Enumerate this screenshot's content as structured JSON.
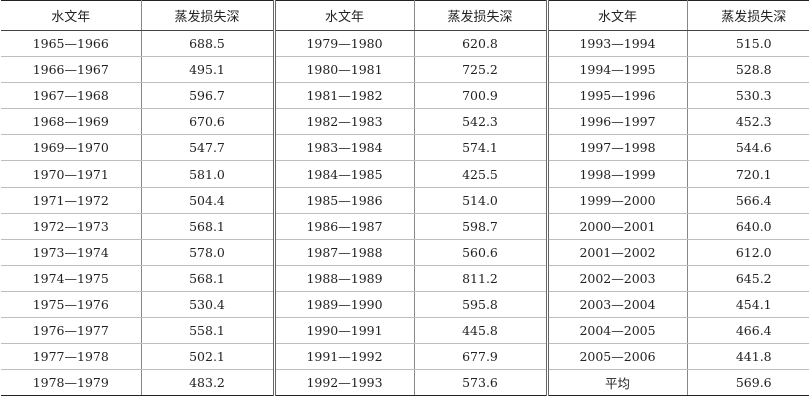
{
  "table": {
    "headers": [
      "水文年",
      "蒸发损失深",
      "水文年",
      "蒸发损失深",
      "水文年",
      "蒸发损失深"
    ],
    "rows": [
      [
        "1965—1966",
        "688.5",
        "1979—1980",
        "620.8",
        "1993—1994",
        "515.0"
      ],
      [
        "1966—1967",
        "495.1",
        "1980—1981",
        "725.2",
        "1994—1995",
        "528.8"
      ],
      [
        "1967—1968",
        "596.7",
        "1981—1982",
        "700.9",
        "1995—1996",
        "530.3"
      ],
      [
        "1968—1969",
        "670.6",
        "1982—1983",
        "542.3",
        "1996—1997",
        "452.3"
      ],
      [
        "1969—1970",
        "547.7",
        "1983—1984",
        "574.1",
        "1997—1998",
        "544.6"
      ],
      [
        "1970—1971",
        "581.0",
        "1984—1985",
        "425.5",
        "1998—1999",
        "720.1"
      ],
      [
        "1971—1972",
        "504.4",
        "1985—1986",
        "514.0",
        "1999—2000",
        "566.4"
      ],
      [
        "1972—1973",
        "568.1",
        "1986—1987",
        "598.7",
        "2000—2001",
        "640.0"
      ],
      [
        "1973—1974",
        "578.0",
        "1987—1988",
        "560.6",
        "2001—2002",
        "612.0"
      ],
      [
        "1974—1975",
        "568.1",
        "1988—1989",
        "811.2",
        "2002—2003",
        "645.2"
      ],
      [
        "1975—1976",
        "530.4",
        "1989—1990",
        "595.8",
        "2003—2004",
        "454.1"
      ],
      [
        "1976—1977",
        "558.1",
        "1990—1991",
        "445.8",
        "2004—2005",
        "466.4"
      ],
      [
        "1977—1978",
        "502.1",
        "1991—1992",
        "677.9",
        "2005—2006",
        "441.8"
      ],
      [
        "1978—1979",
        "483.2",
        "1992—1993",
        "573.6",
        "平均",
        "569.6"
      ]
    ]
  }
}
